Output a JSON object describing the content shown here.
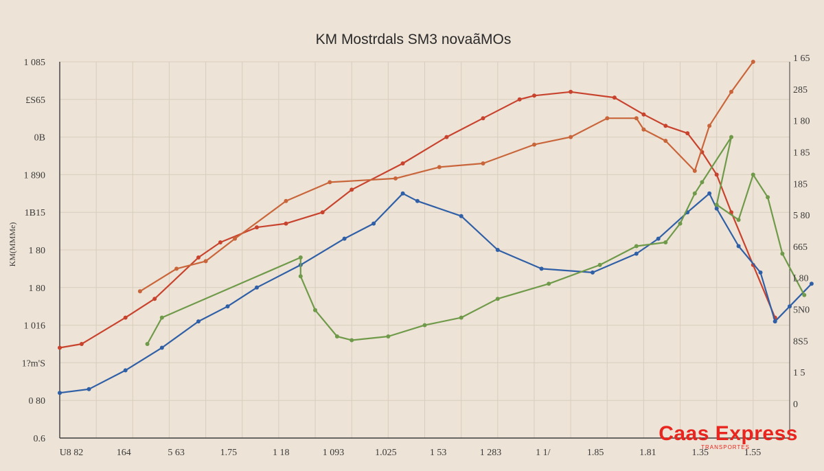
{
  "chart_data": {
    "type": "line",
    "title": "KM Mostrdals SM3 novaãMOs",
    "ylabel": "KM(MMMe)",
    "y_left_ticks": [
      "0.6",
      "0 80",
      "1?m'S",
      "1 016",
      "1 80",
      "1 80",
      "1B15",
      "1 890",
      "0B",
      "£S65",
      "1 085"
    ],
    "y_right_ticks": [
      "0",
      "1 5",
      "8S5",
      "5N0",
      "L80",
      "665",
      "5 80",
      "185",
      "1 85",
      "1 80",
      "285",
      "1 65"
    ],
    "x_tick_labels": [
      "U8 82",
      "164",
      "5 63",
      "1.75",
      "1 18",
      "1 093",
      "1.025",
      "1 53",
      "1 283",
      "1 1/",
      "1.85",
      "1.81",
      "1.35",
      "1.55"
    ],
    "x": [
      0,
      0.05,
      0.1,
      0.15,
      0.2,
      0.25,
      0.3,
      0.35,
      0.4,
      0.45,
      0.5,
      0.55,
      0.6,
      0.65,
      0.7,
      0.75,
      0.8,
      0.85,
      0.9,
      0.95,
      1
    ],
    "ylim": [
      0,
      100
    ],
    "series": [
      {
        "name": "Red",
        "color": "#c8432e",
        "points": [
          [
            0,
            24
          ],
          [
            0.03,
            25
          ],
          [
            0.09,
            32
          ],
          [
            0.13,
            37
          ],
          [
            0.19,
            48
          ],
          [
            0.22,
            52
          ],
          [
            0.27,
            56
          ],
          [
            0.31,
            57
          ],
          [
            0.36,
            60
          ],
          [
            0.4,
            66
          ],
          [
            0.47,
            73
          ],
          [
            0.53,
            80
          ],
          [
            0.58,
            85
          ],
          [
            0.63,
            90
          ],
          [
            0.65,
            91
          ],
          [
            0.7,
            92
          ],
          [
            0.76,
            90.5
          ],
          [
            0.8,
            86
          ],
          [
            0.83,
            83
          ],
          [
            0.86,
            81
          ],
          [
            0.88,
            76
          ],
          [
            0.9,
            70
          ],
          [
            0.92,
            60
          ],
          [
            0.95,
            46
          ],
          [
            0.98,
            32
          ]
        ]
      },
      {
        "name": "Blue",
        "color": "#2f5fa6",
        "points": [
          [
            0,
            12
          ],
          [
            0.04,
            13
          ],
          [
            0.09,
            18
          ],
          [
            0.14,
            24
          ],
          [
            0.19,
            31
          ],
          [
            0.23,
            35
          ],
          [
            0.27,
            40
          ],
          [
            0.33,
            46
          ],
          [
            0.39,
            53
          ],
          [
            0.43,
            57
          ],
          [
            0.47,
            65
          ],
          [
            0.49,
            63
          ],
          [
            0.55,
            59
          ],
          [
            0.6,
            50
          ],
          [
            0.66,
            45
          ],
          [
            0.73,
            44
          ],
          [
            0.79,
            49
          ],
          [
            0.82,
            53
          ],
          [
            0.86,
            60
          ],
          [
            0.89,
            65
          ],
          [
            0.9,
            61
          ],
          [
            0.93,
            51
          ],
          [
            0.96,
            44
          ],
          [
            0.98,
            31
          ],
          [
            1,
            35
          ],
          [
            1.03,
            41
          ]
        ]
      },
      {
        "name": "Orange",
        "color": "#c9653a",
        "points": [
          [
            0.11,
            39
          ],
          [
            0.16,
            45
          ],
          [
            0.2,
            47
          ],
          [
            0.24,
            53
          ],
          [
            0.31,
            63
          ],
          [
            0.37,
            68
          ],
          [
            0.46,
            69
          ],
          [
            0.52,
            72
          ],
          [
            0.58,
            73
          ],
          [
            0.65,
            78
          ],
          [
            0.7,
            80
          ],
          [
            0.75,
            85
          ],
          [
            0.79,
            85
          ],
          [
            0.8,
            82
          ],
          [
            0.83,
            79
          ],
          [
            0.87,
            71
          ],
          [
            0.89,
            83
          ],
          [
            0.92,
            92
          ],
          [
            0.95,
            100
          ]
        ]
      },
      {
        "name": "Green",
        "color": "#6f9a4a",
        "points": [
          [
            0.12,
            25
          ],
          [
            0.14,
            32
          ],
          [
            0.33,
            48
          ],
          [
            0.33,
            43
          ],
          [
            0.35,
            34
          ],
          [
            0.38,
            27
          ],
          [
            0.4,
            26
          ],
          [
            0.45,
            27
          ],
          [
            0.5,
            30
          ],
          [
            0.55,
            32
          ],
          [
            0.6,
            37
          ],
          [
            0.67,
            41
          ],
          [
            0.74,
            46
          ],
          [
            0.79,
            51
          ],
          [
            0.83,
            52
          ],
          [
            0.85,
            57
          ],
          [
            0.87,
            65
          ],
          [
            0.88,
            68
          ],
          [
            0.92,
            80
          ],
          [
            0.9,
            62
          ],
          [
            0.93,
            58
          ],
          [
            0.95,
            70
          ],
          [
            0.97,
            64
          ],
          [
            0.99,
            49
          ],
          [
            1.02,
            38
          ]
        ]
      }
    ]
  },
  "watermark": {
    "main": "Caas Express",
    "sub": "TRANSPORTES"
  }
}
